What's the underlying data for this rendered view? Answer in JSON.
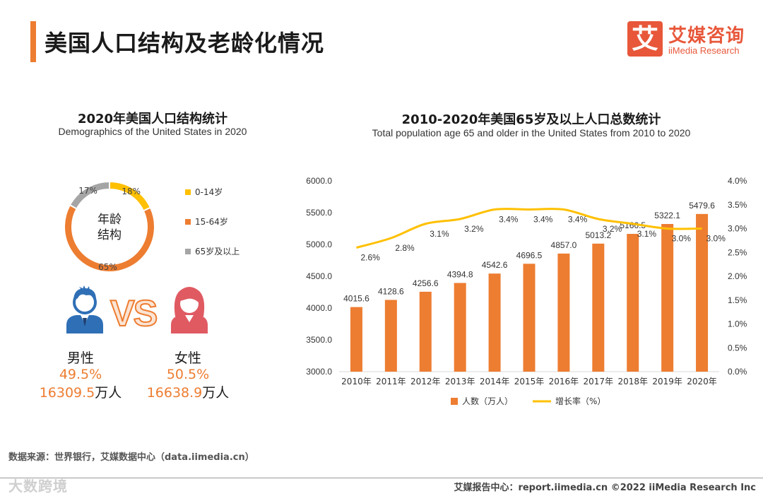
{
  "page": {
    "title": "美国人口结构及老龄化情况"
  },
  "logo": {
    "mark": "艾",
    "cn": "艾媒咨询",
    "en": "iiMedia Research"
  },
  "left_panel": {
    "title_cn": "2020年美国人口结构统计",
    "title_en": "Demographics of the United States in 2020",
    "donut_center": [
      "年龄",
      "结构"
    ],
    "male": {
      "label": "男性",
      "pct": "49.5%",
      "pop_num": "16309.5",
      "pop_unit": "万人"
    },
    "female": {
      "label": "女性",
      "pct": "50.5%",
      "pop_num": "16638.9",
      "pop_unit": "万人"
    },
    "vs_text": "VS"
  },
  "right_panel": {
    "title_cn": "2010-2020年美国65岁及以上人口总数统计",
    "title_en": "Total population age 65 and older in the United States from 2010 to 2020"
  },
  "colors": {
    "accent": "#ed7d31",
    "yellow": "#ffc000",
    "gray": "#a5a5a5",
    "brand": "#e8573a"
  },
  "chart_data": [
    {
      "type": "pie",
      "categories": [
        "0-14岁",
        "15-64岁",
        "65岁及以上"
      ],
      "values": [
        18,
        65,
        17
      ],
      "labels": [
        "18%",
        "65%",
        "17%"
      ],
      "colors": [
        "#ffc000",
        "#ed7d31",
        "#a5a5a5"
      ],
      "legend": "right"
    },
    {
      "type": "bar",
      "categories": [
        "2010年",
        "2011年",
        "2012年",
        "2013年",
        "2014年",
        "2015年",
        "2016年",
        "2017年",
        "2018年",
        "2019年",
        "2020年"
      ],
      "series": [
        {
          "name": "人数（万人）",
          "type": "bar",
          "axis": "left",
          "values": [
            4015.6,
            4128.6,
            4256.6,
            4394.8,
            4542.6,
            4696.5,
            4857.0,
            5013.2,
            5166.5,
            5322.1,
            5479.6
          ],
          "labels": [
            "4015.6",
            "4128.6",
            "4256.6",
            "4394.8",
            "4542.6",
            "4696.5",
            "4857.0",
            "5013.2",
            "5166.5",
            "5322.1",
            "5479.6"
          ]
        },
        {
          "name": "增长率（%）",
          "type": "line",
          "axis": "right",
          "values": [
            2.6,
            2.8,
            3.1,
            3.2,
            3.4,
            3.4,
            3.4,
            3.2,
            3.1,
            3.0,
            3.0
          ],
          "labels": [
            "2.6%",
            "2.8%",
            "3.1%",
            "3.2%",
            "3.4%",
            "3.4%",
            "3.4%",
            "3.2%",
            "3.1%",
            "3.0%",
            "3.0%"
          ]
        }
      ],
      "ylim_left": [
        3000,
        6000
      ],
      "ylim_right": [
        0,
        4
      ],
      "yticks_left": [
        "3000.0",
        "3500.0",
        "4000.0",
        "4500.0",
        "5000.0",
        "5500.0",
        "6000.0"
      ],
      "yticks_right": [
        "0.0%",
        "0.5%",
        "1.0%",
        "1.5%",
        "2.0%",
        "2.5%",
        "3.0%",
        "3.5%",
        "4.0%"
      ],
      "grid": false,
      "legend": "bottom"
    }
  ],
  "footer": {
    "source": "数据来源：世界银行，艾媒数据中心（data.iimedia.cn）",
    "right": "艾媒报告中心：report.iimedia.cn   ©2022  iiMedia Research  Inc",
    "watermark": "大数跨境"
  }
}
